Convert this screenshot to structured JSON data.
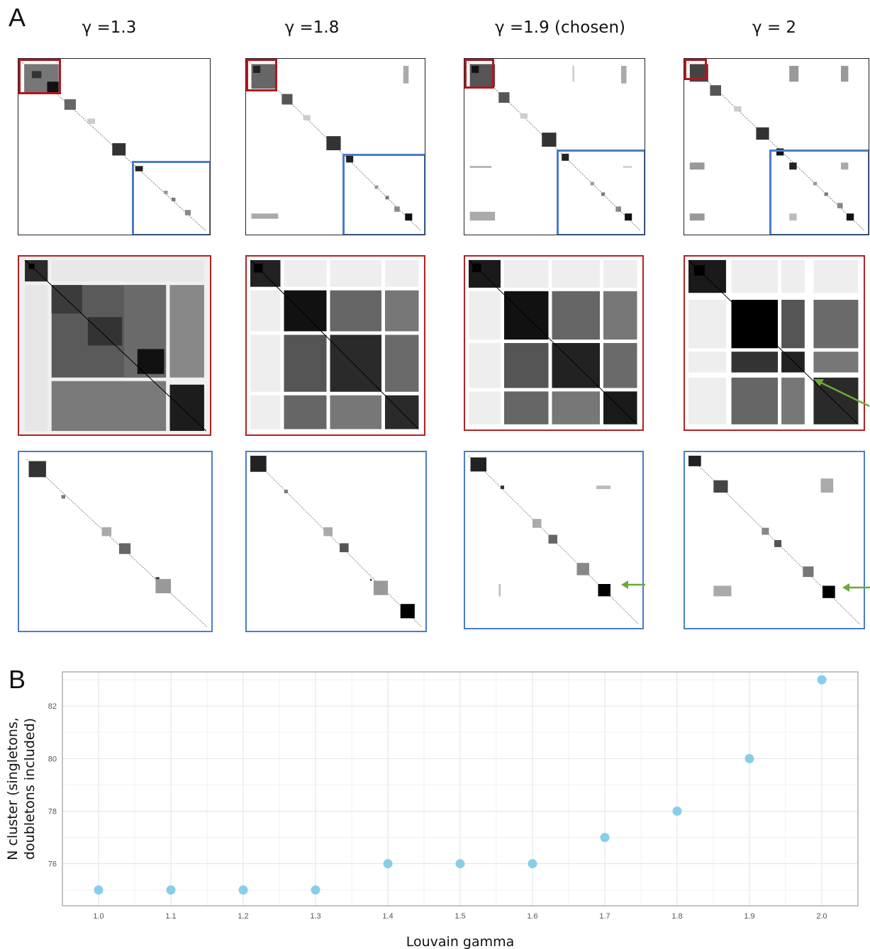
{
  "panel_a": {
    "letter": "A",
    "columns": [
      {
        "title": "γ =1.3"
      },
      {
        "title": "γ =1.8"
      },
      {
        "title": "γ =1.9 (chosen)"
      },
      {
        "title": "γ = 2"
      }
    ],
    "colors": {
      "overview_border": "#222222",
      "red_zoom": "#b3161d",
      "blue_zoom": "#4a7cc9",
      "arrow": "#6aaa3a"
    }
  },
  "panel_b": {
    "letter": "B"
  },
  "chart_data": {
    "type": "scatter",
    "title": "",
    "xlabel": "Louvain gamma",
    "ylabel_lines": [
      "N cluster (singletons,",
      "doubletons included)"
    ],
    "x": [
      1.0,
      1.1,
      1.2,
      1.3,
      1.4,
      1.5,
      1.6,
      1.7,
      1.8,
      1.9,
      2.0
    ],
    "y": [
      75,
      75,
      75,
      75,
      76,
      76,
      76,
      77,
      78,
      80,
      83
    ],
    "xticks": [
      "1.0",
      "1.1",
      "1.2",
      "1.3",
      "1.4",
      "1.5",
      "1.6",
      "1.7",
      "1.8",
      "1.9",
      "2.0"
    ],
    "yticks": [
      "76",
      "78",
      "80",
      "82"
    ],
    "xlim": [
      0.95,
      2.05
    ],
    "ylim": [
      74.4,
      83.3
    ],
    "grid": true,
    "point_color": "#87ceeb"
  }
}
